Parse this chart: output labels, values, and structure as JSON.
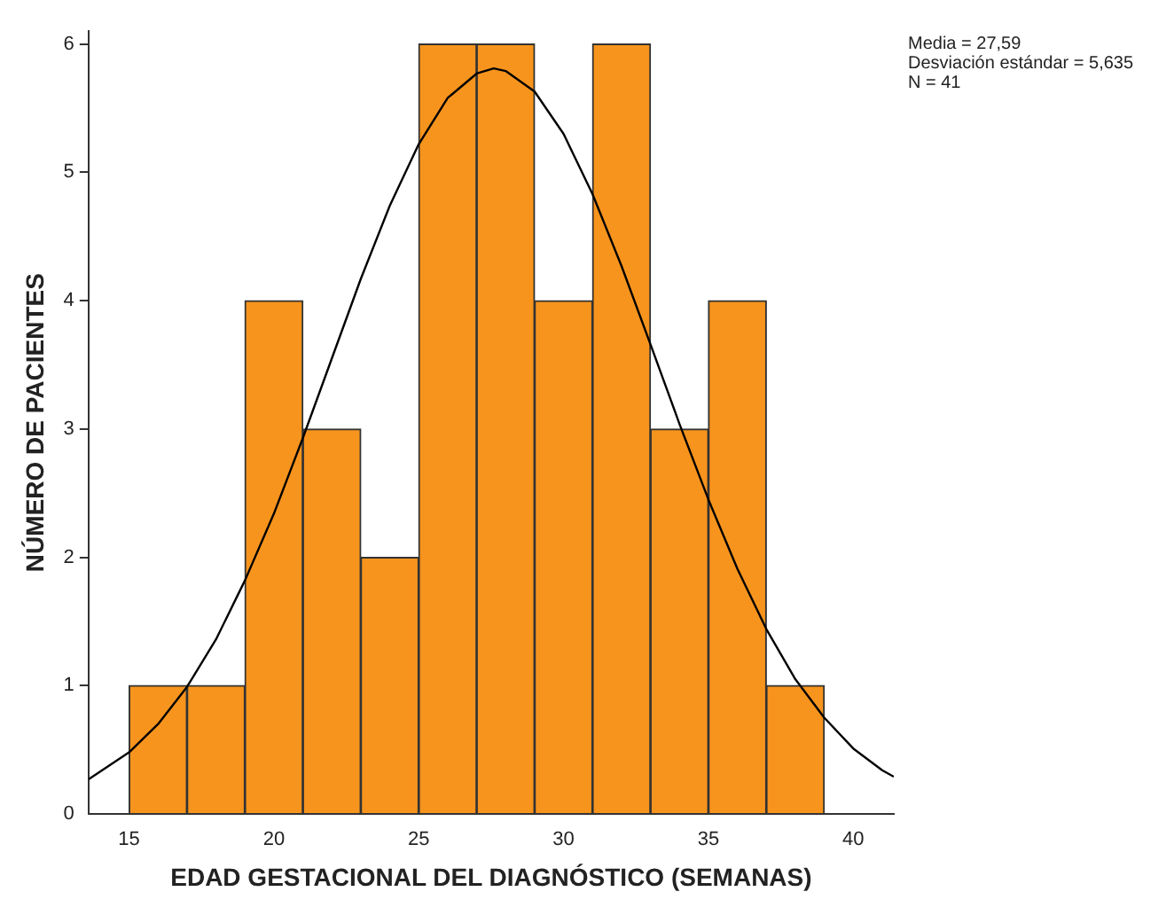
{
  "chart_data": {
    "type": "histogram",
    "xlabel": "EDAD GESTACIONAL DEL DIAGNÓSTICO (SEMANAS)",
    "ylabel": "NÚMERO DE PACIENTES",
    "bins": [
      15,
      17,
      19,
      21,
      23,
      25,
      27,
      29,
      31,
      33,
      35,
      37,
      39
    ],
    "values": [
      1,
      1,
      4,
      3,
      2,
      6,
      6,
      4,
      6,
      3,
      4,
      1
    ],
    "color": "#f7941d",
    "series": [
      {
        "type": "line",
        "color": "#000000",
        "x": [
          13.6,
          15,
          16,
          17,
          18,
          19,
          20,
          21,
          22,
          23,
          24,
          25,
          26,
          27,
          27.59,
          28,
          29,
          30,
          31,
          32,
          33,
          34,
          35,
          36,
          37,
          38,
          39,
          40,
          41,
          41.4
        ],
        "values": [
          0.27,
          0.48,
          0.7,
          0.99,
          1.36,
          1.82,
          2.34,
          2.93,
          3.55,
          4.17,
          4.74,
          5.22,
          5.58,
          5.77,
          5.81,
          5.79,
          5.63,
          5.3,
          4.83,
          4.27,
          3.66,
          3.04,
          2.45,
          1.91,
          1.44,
          1.05,
          0.75,
          0.51,
          0.34,
          0.29
        ]
      }
    ],
    "xlim": [
      13.6,
      41.4
    ],
    "xticks": [
      15,
      20,
      25,
      30,
      35,
      40
    ],
    "ylim": [
      0,
      6.1
    ],
    "yticks": [
      0,
      1,
      2,
      3,
      4,
      5,
      6
    ],
    "grid": false,
    "legend": false,
    "marker": "none",
    "annotations": [
      "Media = 27,59",
      "Desviación estándar = 5,635",
      "N = 41"
    ]
  }
}
